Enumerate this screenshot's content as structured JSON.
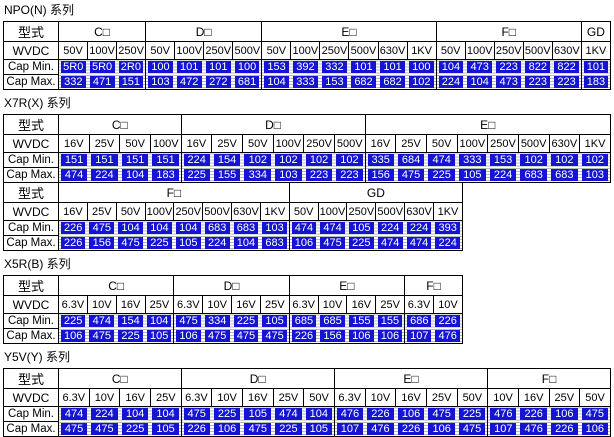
{
  "colors": {
    "cell_fill": "#1414D2",
    "cell_text": "#FFFFFF",
    "grid": "#000000",
    "dots": "#B9B9B9"
  },
  "row_labels": {
    "type": "型式",
    "wvdc": "WVDC",
    "cap_min": "Cap Min.",
    "cap_max": "Cap Max."
  },
  "sections": [
    {
      "title": "NPO(N) 系列",
      "tables": [
        {
          "groups": [
            {
              "name": "C□",
              "wvdc": [
                "50V",
                "100V",
                "250V"
              ],
              "cap_min": [
                "5R0",
                "5R0",
                "2R0"
              ],
              "cap_max": [
                "332",
                "471",
                "151"
              ]
            },
            {
              "name": "D□",
              "wvdc": [
                "50V",
                "100V",
                "250V",
                "500V"
              ],
              "cap_min": [
                "100",
                "101",
                "101",
                "100"
              ],
              "cap_max": [
                "103",
                "472",
                "272",
                "681"
              ]
            },
            {
              "name": "E□",
              "wvdc": [
                "50V",
                "100V",
                "250V",
                "500V",
                "630V",
                "1KV"
              ],
              "cap_min": [
                "153",
                "392",
                "332",
                "101",
                "101",
                "100"
              ],
              "cap_max": [
                "104",
                "333",
                "153",
                "682",
                "682",
                "102"
              ]
            },
            {
              "name": "F□",
              "wvdc": [
                "50V",
                "100V",
                "250V",
                "500V",
                "630V"
              ],
              "cap_min": [
                "104",
                "473",
                "223",
                "822",
                "822"
              ],
              "cap_max": [
                "224",
                "104",
                "473",
                "223",
                "223"
              ]
            },
            {
              "name": "GD",
              "wvdc": [
                "1KV"
              ],
              "cap_min": [
                "101"
              ],
              "cap_max": [
                "183"
              ]
            }
          ]
        }
      ]
    },
    {
      "title": "X7R(X) 系列",
      "tables": [
        {
          "groups": [
            {
              "name": "C□",
              "wvdc": [
                "16V",
                "25V",
                "50V",
                "100V"
              ],
              "cap_min": [
                "151",
                "151",
                "151",
                "151"
              ],
              "cap_max": [
                "474",
                "224",
                "104",
                "183"
              ]
            },
            {
              "name": "D□",
              "wvdc": [
                "16V",
                "25V",
                "50V",
                "100V",
                "250V",
                "500V"
              ],
              "cap_min": [
                "224",
                "154",
                "102",
                "102",
                "102",
                "102"
              ],
              "cap_max": [
                "225",
                "155",
                "334",
                "103",
                "223",
                "223"
              ]
            },
            {
              "name": "E□",
              "wvdc": [
                "16V",
                "25V",
                "50V",
                "100V",
                "250V",
                "500V",
                "630V",
                "1KV"
              ],
              "cap_min": [
                "335",
                "684",
                "474",
                "333",
                "153",
                "102",
                "102",
                "102"
              ],
              "cap_max": [
                "156",
                "475",
                "225",
                "105",
                "224",
                "683",
                "683",
                "103"
              ]
            }
          ]
        },
        {
          "groups": [
            {
              "name": "F□",
              "wvdc": [
                "16V",
                "25V",
                "50V",
                "100V",
                "250V",
                "500V",
                "630V",
                "1KV"
              ],
              "cap_min": [
                "226",
                "475",
                "104",
                "104",
                "104",
                "683",
                "683",
                "103"
              ],
              "cap_max": [
                "226",
                "156",
                "475",
                "225",
                "105",
                "224",
                "104",
                "683"
              ]
            },
            {
              "name": "GD",
              "wvdc": [
                "50V",
                "100V",
                "250V",
                "500V",
                "630V",
                "1KV"
              ],
              "cap_min": [
                "474",
                "474",
                "105",
                "224",
                "224",
                "393"
              ],
              "cap_max": [
                "106",
                "475",
                "225",
                "474",
                "474",
                "224"
              ]
            }
          ]
        }
      ]
    },
    {
      "title": "X5R(B) 系列",
      "tables": [
        {
          "groups": [
            {
              "name": "C□",
              "wvdc": [
                "6.3V",
                "10V",
                "16V",
                "25V"
              ],
              "cap_min": [
                "225",
                "474",
                "154",
                "104"
              ],
              "cap_max": [
                "106",
                "475",
                "225",
                "105"
              ]
            },
            {
              "name": "D□",
              "wvdc": [
                "6.3V",
                "10V",
                "16V",
                "25V"
              ],
              "cap_min": [
                "475",
                "334",
                "225",
                "105"
              ],
              "cap_max": [
                "106",
                "475",
                "475",
                "475"
              ]
            },
            {
              "name": "E□",
              "wvdc": [
                "6.3V",
                "10V",
                "16V",
                "25V"
              ],
              "cap_min": [
                "685",
                "685",
                "155",
                "155"
              ],
              "cap_max": [
                "226",
                "156",
                "106",
                "106"
              ]
            },
            {
              "name": "F□",
              "wvdc": [
                "6.3V",
                "10V"
              ],
              "cap_min": [
                "686",
                "226"
              ],
              "cap_max": [
                "107",
                "476"
              ]
            }
          ]
        }
      ]
    },
    {
      "title": "Y5V(Y) 系列",
      "tables": [
        {
          "groups": [
            {
              "name": "C□",
              "wvdc": [
                "6.3V",
                "10V",
                "16V",
                "25V"
              ],
              "cap_min": [
                "474",
                "224",
                "104",
                "104"
              ],
              "cap_max": [
                "475",
                "475",
                "225",
                "105"
              ]
            },
            {
              "name": "D□",
              "wvdc": [
                "6.3V",
                "10V",
                "16V",
                "25V",
                "50V"
              ],
              "cap_min": [
                "475",
                "225",
                "105",
                "474",
                "104"
              ],
              "cap_max": [
                "226",
                "106",
                "475",
                "225",
                "105"
              ]
            },
            {
              "name": "E□",
              "wvdc": [
                "6.3V",
                "10V",
                "16V",
                "25V",
                "50V"
              ],
              "cap_min": [
                "476",
                "226",
                "106",
                "475",
                "225"
              ],
              "cap_max": [
                "107",
                "476",
                "226",
                "106",
                "475"
              ]
            },
            {
              "name": "F□",
              "wvdc": [
                "10V",
                "16V",
                "25V",
                "50V"
              ],
              "cap_min": [
                "476",
                "226",
                "106",
                "475"
              ],
              "cap_max": [
                "107",
                "476",
                "226",
                "106"
              ]
            }
          ]
        }
      ]
    }
  ]
}
